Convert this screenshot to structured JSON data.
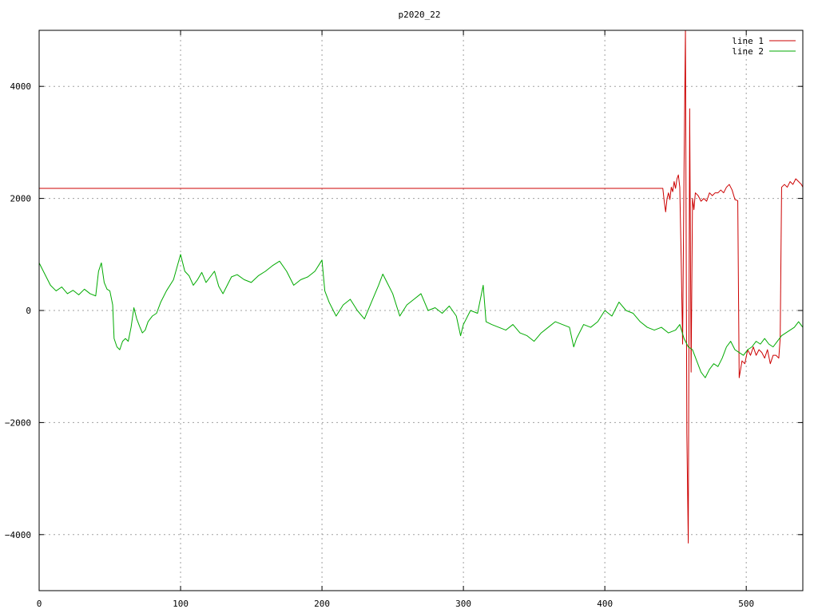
{
  "chart_data": {
    "type": "line",
    "title": "p2020_22",
    "xlabel": "",
    "ylabel": "",
    "xlim": [
      0,
      540
    ],
    "ylim": [
      -5000,
      5000
    ],
    "xticks": [
      0,
      100,
      200,
      300,
      400,
      500
    ],
    "yticks": [
      -4000,
      -2000,
      0,
      2000,
      4000
    ],
    "grid": true,
    "legend_position": "top-right",
    "series": [
      {
        "name": "line 1",
        "color": "#cc0000",
        "points": [
          [
            0,
            2180
          ],
          [
            441,
            2180
          ],
          [
            442,
            1950
          ],
          [
            443,
            1760
          ],
          [
            444,
            2000
          ],
          [
            445,
            2100
          ],
          [
            446,
            1980
          ],
          [
            447,
            2200
          ],
          [
            448,
            2120
          ],
          [
            449,
            2300
          ],
          [
            450,
            2180
          ],
          [
            451,
            2350
          ],
          [
            452,
            2420
          ],
          [
            453,
            2200
          ],
          [
            454,
            900
          ],
          [
            455,
            -600
          ],
          [
            456,
            2500
          ],
          [
            457,
            5000
          ],
          [
            458,
            -2200
          ],
          [
            459,
            -4150
          ],
          [
            460,
            3600
          ],
          [
            461,
            -1100
          ],
          [
            462,
            2000
          ],
          [
            463,
            1800
          ],
          [
            464,
            2100
          ],
          [
            466,
            2050
          ],
          [
            468,
            1950
          ],
          [
            470,
            2000
          ],
          [
            472,
            1950
          ],
          [
            474,
            2100
          ],
          [
            476,
            2050
          ],
          [
            478,
            2100
          ],
          [
            480,
            2100
          ],
          [
            482,
            2150
          ],
          [
            484,
            2100
          ],
          [
            486,
            2200
          ],
          [
            488,
            2250
          ],
          [
            490,
            2150
          ],
          [
            492,
            1980
          ],
          [
            494,
            1960
          ],
          [
            495,
            -1200
          ],
          [
            497,
            -900
          ],
          [
            499,
            -950
          ],
          [
            501,
            -700
          ],
          [
            503,
            -800
          ],
          [
            505,
            -650
          ],
          [
            507,
            -800
          ],
          [
            509,
            -700
          ],
          [
            511,
            -750
          ],
          [
            513,
            -850
          ],
          [
            515,
            -700
          ],
          [
            517,
            -950
          ],
          [
            519,
            -800
          ],
          [
            521,
            -800
          ],
          [
            523,
            -850
          ],
          [
            524,
            -500
          ],
          [
            525,
            2200
          ],
          [
            527,
            2250
          ],
          [
            529,
            2200
          ],
          [
            531,
            2300
          ],
          [
            533,
            2250
          ],
          [
            535,
            2350
          ],
          [
            537,
            2300
          ],
          [
            539,
            2250
          ],
          [
            540,
            2200
          ]
        ]
      },
      {
        "name": "line 2",
        "color": "#00aa00",
        "points": [
          [
            0,
            850
          ],
          [
            4,
            650
          ],
          [
            8,
            450
          ],
          [
            12,
            350
          ],
          [
            16,
            420
          ],
          [
            20,
            300
          ],
          [
            24,
            360
          ],
          [
            28,
            280
          ],
          [
            32,
            380
          ],
          [
            36,
            300
          ],
          [
            40,
            260
          ],
          [
            42,
            700
          ],
          [
            44,
            850
          ],
          [
            46,
            500
          ],
          [
            48,
            380
          ],
          [
            50,
            350
          ],
          [
            52,
            100
          ],
          [
            53,
            -500
          ],
          [
            55,
            -650
          ],
          [
            57,
            -700
          ],
          [
            59,
            -550
          ],
          [
            61,
            -500
          ],
          [
            63,
            -550
          ],
          [
            65,
            -300
          ],
          [
            67,
            50
          ],
          [
            69,
            -150
          ],
          [
            71,
            -280
          ],
          [
            73,
            -400
          ],
          [
            75,
            -350
          ],
          [
            77,
            -200
          ],
          [
            80,
            -100
          ],
          [
            83,
            -50
          ],
          [
            86,
            150
          ],
          [
            90,
            350
          ],
          [
            95,
            550
          ],
          [
            100,
            1000
          ],
          [
            103,
            700
          ],
          [
            106,
            620
          ],
          [
            109,
            450
          ],
          [
            112,
            550
          ],
          [
            115,
            680
          ],
          [
            118,
            500
          ],
          [
            121,
            600
          ],
          [
            124,
            700
          ],
          [
            127,
            430
          ],
          [
            130,
            300
          ],
          [
            133,
            450
          ],
          [
            136,
            600
          ],
          [
            140,
            640
          ],
          [
            145,
            550
          ],
          [
            150,
            500
          ],
          [
            155,
            620
          ],
          [
            160,
            700
          ],
          [
            165,
            800
          ],
          [
            170,
            880
          ],
          [
            175,
            700
          ],
          [
            180,
            450
          ],
          [
            185,
            550
          ],
          [
            190,
            600
          ],
          [
            195,
            700
          ],
          [
            200,
            900
          ],
          [
            202,
            350
          ],
          [
            205,
            150
          ],
          [
            210,
            -100
          ],
          [
            215,
            100
          ],
          [
            220,
            200
          ],
          [
            225,
            0
          ],
          [
            230,
            -150
          ],
          [
            235,
            150
          ],
          [
            240,
            450
          ],
          [
            243,
            650
          ],
          [
            246,
            500
          ],
          [
            250,
            300
          ],
          [
            255,
            -100
          ],
          [
            260,
            100
          ],
          [
            265,
            200
          ],
          [
            270,
            300
          ],
          [
            275,
            0
          ],
          [
            280,
            50
          ],
          [
            285,
            -50
          ],
          [
            290,
            80
          ],
          [
            295,
            -100
          ],
          [
            298,
            -450
          ],
          [
            300,
            -250
          ],
          [
            305,
            0
          ],
          [
            310,
            -50
          ],
          [
            314,
            450
          ],
          [
            316,
            -200
          ],
          [
            320,
            -250
          ],
          [
            325,
            -300
          ],
          [
            330,
            -350
          ],
          [
            335,
            -250
          ],
          [
            340,
            -400
          ],
          [
            345,
            -450
          ],
          [
            350,
            -550
          ],
          [
            355,
            -400
          ],
          [
            360,
            -300
          ],
          [
            365,
            -200
          ],
          [
            370,
            -250
          ],
          [
            375,
            -300
          ],
          [
            378,
            -650
          ],
          [
            380,
            -500
          ],
          [
            385,
            -250
          ],
          [
            390,
            -300
          ],
          [
            395,
            -200
          ],
          [
            400,
            0
          ],
          [
            405,
            -100
          ],
          [
            410,
            150
          ],
          [
            415,
            0
          ],
          [
            420,
            -50
          ],
          [
            425,
            -200
          ],
          [
            430,
            -300
          ],
          [
            435,
            -350
          ],
          [
            440,
            -300
          ],
          [
            445,
            -400
          ],
          [
            450,
            -350
          ],
          [
            453,
            -250
          ],
          [
            456,
            -500
          ],
          [
            459,
            -650
          ],
          [
            462,
            -700
          ],
          [
            465,
            -900
          ],
          [
            468,
            -1100
          ],
          [
            471,
            -1200
          ],
          [
            474,
            -1050
          ],
          [
            477,
            -950
          ],
          [
            480,
            -1000
          ],
          [
            483,
            -850
          ],
          [
            486,
            -650
          ],
          [
            489,
            -550
          ],
          [
            492,
            -700
          ],
          [
            495,
            -750
          ],
          [
            498,
            -800
          ],
          [
            501,
            -700
          ],
          [
            504,
            -650
          ],
          [
            507,
            -550
          ],
          [
            510,
            -600
          ],
          [
            513,
            -500
          ],
          [
            516,
            -600
          ],
          [
            519,
            -650
          ],
          [
            522,
            -550
          ],
          [
            525,
            -450
          ],
          [
            528,
            -400
          ],
          [
            531,
            -350
          ],
          [
            534,
            -300
          ],
          [
            537,
            -200
          ],
          [
            540,
            -300
          ]
        ]
      }
    ]
  }
}
